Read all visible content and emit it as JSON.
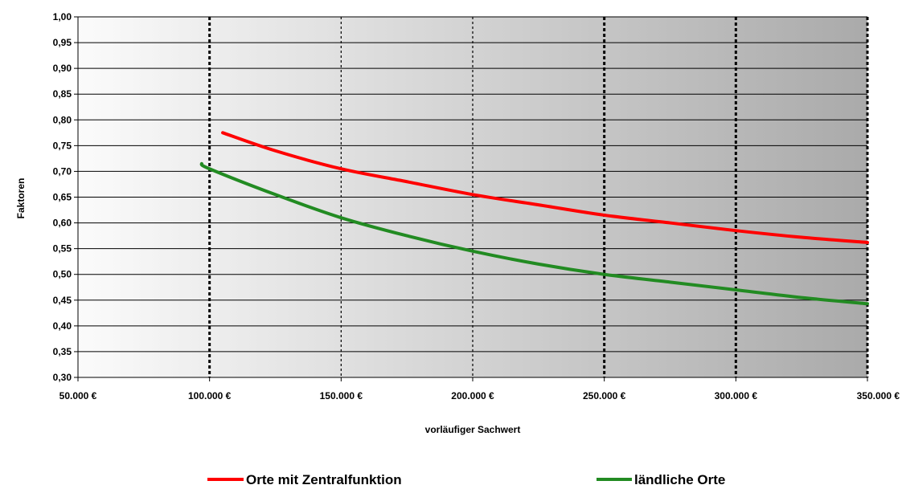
{
  "chart_data": {
    "type": "line",
    "xlabel": "vorläufiger Sachwert",
    "ylabel": "Faktoren",
    "xlim": [
      50000,
      350000
    ],
    "ylim": [
      0.3,
      1.0
    ],
    "x_ticks": [
      50000,
      100000,
      150000,
      200000,
      250000,
      300000,
      350000
    ],
    "x_tick_labels": [
      "50.000 €",
      "100.000 €",
      "150.000 €",
      "200.000 €",
      "250.000 €",
      "300.000 €",
      "350.000 €"
    ],
    "y_ticks": [
      0.3,
      0.35,
      0.4,
      0.45,
      0.5,
      0.55,
      0.6,
      0.65,
      0.7,
      0.75,
      0.8,
      0.85,
      0.9,
      0.95,
      1.0
    ],
    "y_tick_labels": [
      "0,30",
      "0,35",
      "0,40",
      "0,45",
      "0,50",
      "0,55",
      "0,60",
      "0,65",
      "0,70",
      "0,75",
      "0,80",
      "0,85",
      "0,90",
      "0,95",
      "1,00"
    ],
    "grid": "horizontal solid lines; vertical dotted lines at x ticks",
    "background": "gradient from light gray (left) to darker gray (right)",
    "legend_position": "bottom",
    "series": [
      {
        "name": "Orte mit Zentralfunktion",
        "color": "#ff0000",
        "x": [
          105000,
          125000,
          150000,
          175000,
          200000,
          225000,
          250000,
          275000,
          300000,
          325000,
          350000
        ],
        "values": [
          0.775,
          0.74,
          0.705,
          0.68,
          0.655,
          0.635,
          0.615,
          0.6,
          0.585,
          0.572,
          0.562
        ]
      },
      {
        "name": "ländliche Orte",
        "color": "#228b22",
        "x": [
          97000,
          100000,
          125000,
          150000,
          175000,
          200000,
          225000,
          250000,
          275000,
          300000,
          325000,
          350000
        ],
        "values": [
          0.715,
          0.705,
          0.655,
          0.61,
          0.575,
          0.545,
          0.52,
          0.5,
          0.485,
          0.47,
          0.455,
          0.443
        ]
      }
    ]
  }
}
